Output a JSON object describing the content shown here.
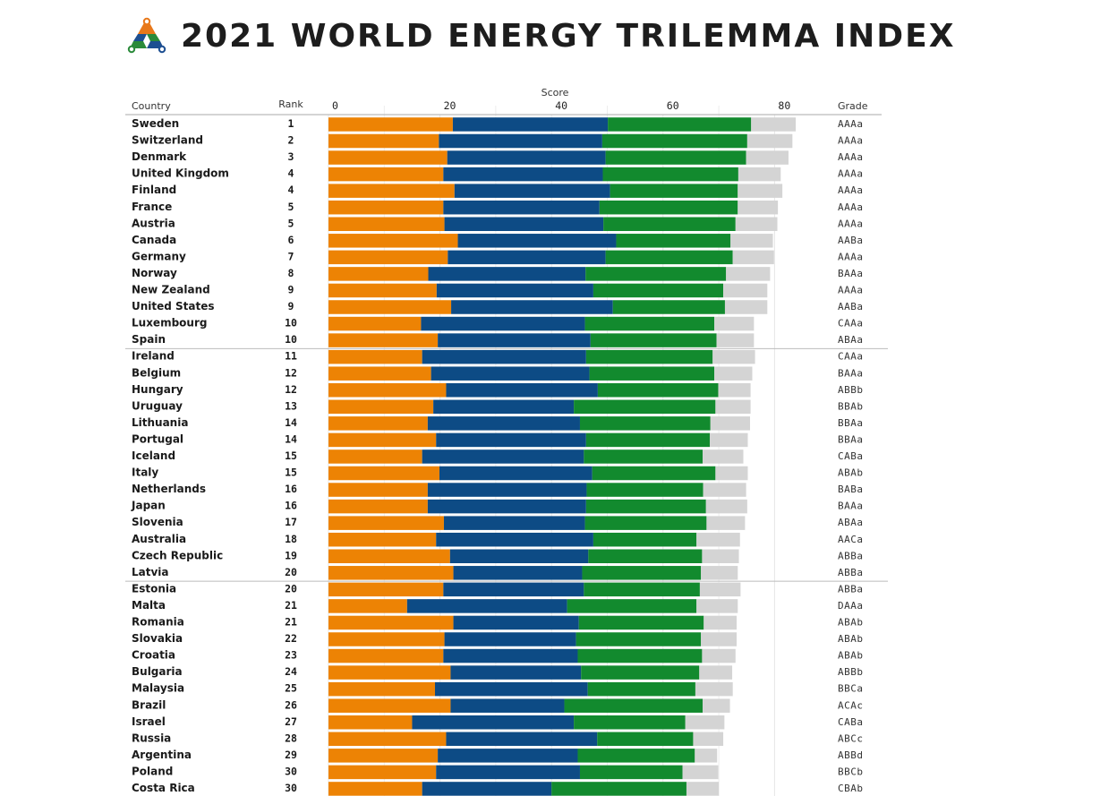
{
  "title": "2021 WORLD ENERGY TRILEMMA INDEX",
  "colors": {
    "orange": "#ed8304",
    "blue": "#0d4b85",
    "green": "#128a2e",
    "grey": "#d4d4d4",
    "logo_orange": "#e8781a",
    "logo_blue": "#1d4f91",
    "logo_green": "#2a8a3a"
  },
  "chart_data": {
    "type": "bar",
    "orientation": "horizontal",
    "stacked": true,
    "headers": {
      "country": "Country",
      "rank": "Rank",
      "score": "Score",
      "grade": "Grade"
    },
    "x_ticks": [
      "0",
      "20",
      "40",
      "60",
      "80"
    ],
    "xlim": [
      0,
      100
    ],
    "grid": true,
    "group_separators_after_rows": [
      13,
      27
    ],
    "categories": [
      "Sweden",
      "Switzerland",
      "Denmark",
      "United Kingdom",
      "Finland",
      "France",
      "Austria",
      "Canada",
      "Germany",
      "Norway",
      "New Zealand",
      "United States",
      "Luxembourg",
      "Spain",
      "Ireland",
      "Belgium",
      "Hungary",
      "Uruguay",
      "Lithuania",
      "Portugal",
      "Iceland",
      "Italy",
      "Netherlands",
      "Japan",
      "Slovenia",
      "Australia",
      "Czech Republic",
      "Latvia",
      "Estonia",
      "Malta",
      "Romania",
      "Slovakia",
      "Croatia",
      "Bulgaria",
      "Malaysia",
      "Brazil",
      "Israel",
      "Russia",
      "Argentina",
      "Poland",
      "Costa Rica"
    ],
    "ranks": [
      "1",
      "2",
      "3",
      "4",
      "4",
      "5",
      "5",
      "6",
      "7",
      "8",
      "9",
      "9",
      "10",
      "10",
      "11",
      "12",
      "12",
      "13",
      "14",
      "14",
      "15",
      "15",
      "16",
      "16",
      "17",
      "18",
      "19",
      "20",
      "20",
      "21",
      "21",
      "22",
      "23",
      "24",
      "25",
      "26",
      "27",
      "28",
      "29",
      "30",
      "30"
    ],
    "grades": [
      "AAAa",
      "AAAa",
      "AAAa",
      "AAAa",
      "AAAa",
      "AAAa",
      "AAAa",
      "AABa",
      "AAAa",
      "BAAa",
      "AAAa",
      "AABa",
      "CAAa",
      "ABAa",
      "CAAa",
      "BAAa",
      "ABBb",
      "BBAb",
      "BBAa",
      "BBAa",
      "CABa",
      "ABAb",
      "BABa",
      "BAAa",
      "ABAa",
      "AACa",
      "ABBa",
      "ABBa",
      "ABBa",
      "DAAa",
      "ABAb",
      "ABAb",
      "ABAb",
      "ABBb",
      "BBCa",
      "ACAc",
      "CABa",
      "ABCc",
      "ABBd",
      "BBCb",
      "CBAb"
    ],
    "series": [
      {
        "values": [
          22.3,
          19.8,
          21.3,
          20.6,
          22.6,
          20.6,
          20.8,
          23.2,
          21.4,
          17.9,
          19.4,
          22.0,
          16.6,
          19.6,
          16.8,
          18.4,
          21.1,
          18.8,
          17.8,
          19.3,
          16.8,
          19.9,
          17.8,
          17.8,
          20.7,
          19.3,
          21.8,
          22.4,
          20.6,
          14.1,
          22.4,
          20.8,
          20.6,
          21.9,
          19.1,
          21.9,
          15.0,
          21.1,
          19.6,
          19.3,
          16.8
        ]
      },
      {
        "values": [
          27.8,
          29.3,
          28.4,
          28.6,
          27.9,
          28.0,
          28.5,
          28.4,
          28.3,
          28.2,
          28.1,
          29.0,
          29.4,
          27.4,
          29.4,
          28.4,
          27.2,
          25.2,
          27.3,
          26.9,
          29.0,
          27.4,
          28.5,
          28.4,
          25.3,
          28.2,
          24.8,
          23.1,
          25.2,
          28.7,
          22.5,
          23.6,
          24.1,
          23.4,
          27.4,
          20.4,
          29.0,
          27.1,
          25.1,
          25.8,
          23.2
        ]
      },
      {
        "values": [
          25.7,
          26.0,
          25.2,
          24.3,
          22.9,
          24.8,
          23.7,
          20.5,
          22.8,
          25.2,
          23.3,
          20.1,
          23.2,
          22.6,
          22.7,
          22.4,
          21.6,
          25.4,
          23.4,
          22.2,
          21.3,
          22.1,
          20.9,
          21.5,
          21.8,
          18.5,
          20.4,
          21.3,
          20.8,
          23.2,
          22.4,
          22.4,
          22.3,
          21.2,
          19.3,
          24.8,
          20.0,
          17.2,
          21.0,
          18.4,
          24.2
        ]
      },
      {
        "values": [
          8.0,
          8.1,
          7.6,
          7.6,
          8.0,
          7.2,
          7.5,
          7.6,
          7.4,
          7.9,
          7.9,
          7.6,
          7.1,
          6.7,
          7.6,
          6.8,
          5.8,
          6.3,
          7.1,
          6.8,
          7.3,
          5.8,
          7.7,
          7.4,
          6.9,
          7.8,
          6.6,
          6.6,
          7.3,
          7.4,
          5.9,
          6.4,
          6.0,
          5.9,
          6.7,
          4.9,
          7.0,
          5.4,
          4.0,
          6.4,
          5.8
        ]
      }
    ]
  }
}
